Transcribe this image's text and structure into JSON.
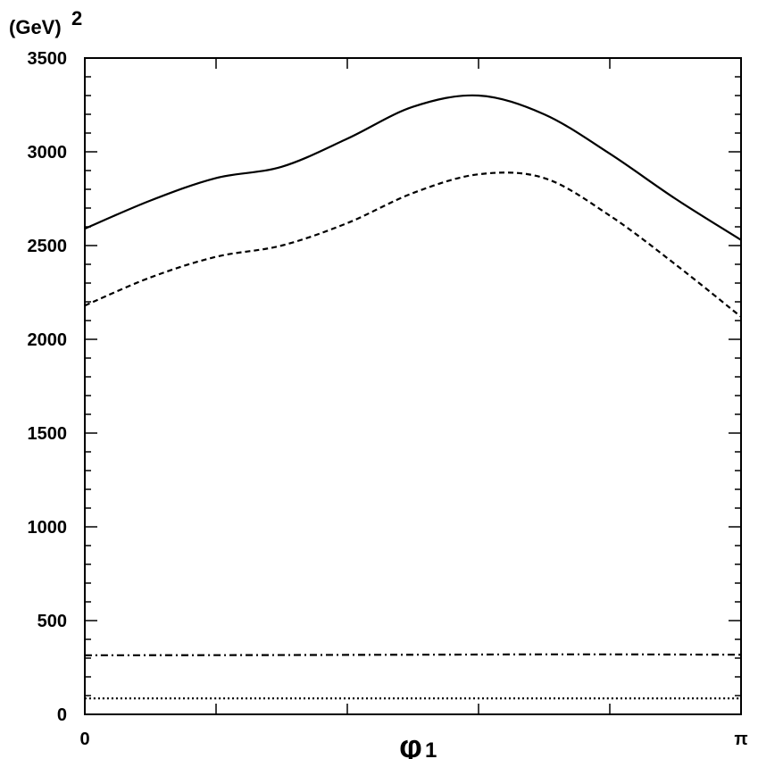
{
  "chart_data": {
    "type": "line",
    "title": "",
    "ylabel": "(GeV)",
    "ylabel_exponent": "2",
    "xlabel_symbol": "φ",
    "xlabel_subscript": "1",
    "xlim": [
      0,
      3.14159
    ],
    "ylim": [
      0,
      3500
    ],
    "grid": false,
    "y_ticks": [
      0,
      500,
      1000,
      1500,
      2000,
      2500,
      3000,
      3500
    ],
    "x_tick_labels": [
      {
        "value": 0,
        "label": "0"
      },
      {
        "value": 3.14159,
        "label": "π"
      }
    ],
    "series": [
      {
        "style": "solid",
        "x": [
          0,
          0.314,
          0.628,
          0.942,
          1.257,
          1.571,
          1.885,
          2.199,
          2.513,
          2.827,
          3.14159
        ],
        "y": [
          2590,
          2740,
          2860,
          2920,
          3070,
          3240,
          3300,
          3200,
          2990,
          2750,
          2530
        ]
      },
      {
        "style": "dashed",
        "x": [
          0,
          0.314,
          0.628,
          0.942,
          1.257,
          1.571,
          1.885,
          2.199,
          2.513,
          2.827,
          3.14159
        ],
        "y": [
          2180,
          2330,
          2440,
          2500,
          2620,
          2780,
          2880,
          2860,
          2660,
          2400,
          2120
        ]
      },
      {
        "style": "dash-dot",
        "x": [
          0,
          0.785,
          1.571,
          2.356,
          3.14159
        ],
        "y": [
          315,
          316,
          318,
          320,
          318
        ]
      },
      {
        "style": "dotted",
        "x": [
          0,
          0.785,
          1.571,
          2.356,
          3.14159
        ],
        "y": [
          85,
          85,
          85,
          85,
          85
        ]
      }
    ]
  }
}
